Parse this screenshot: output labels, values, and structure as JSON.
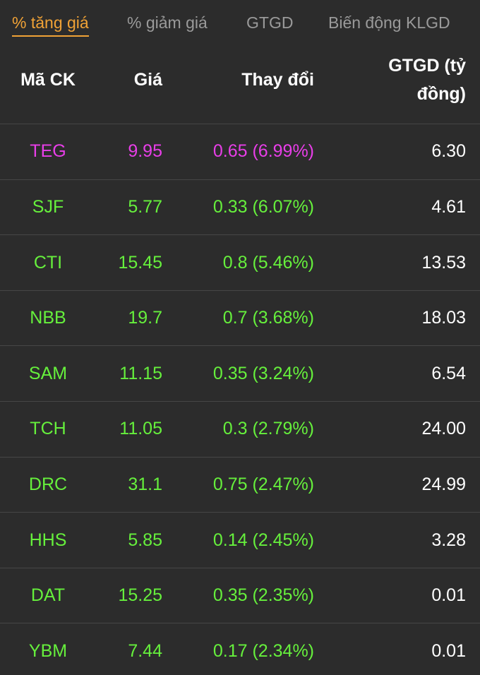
{
  "tabs": {
    "items": [
      "% tăng giá",
      "% giảm giá",
      "GTGD",
      "Biến động KLGD"
    ],
    "active": 0
  },
  "table": {
    "columns": [
      "Mã CK",
      "Giá",
      "Thay đổi",
      "GTGD (tỷ đồng)"
    ],
    "rows": [
      {
        "cells": [
          "TEG",
          "9.95",
          "0.65 (6.99%)",
          "6.30"
        ],
        "color": "#e83ee8"
      },
      {
        "cells": [
          "SJF",
          "5.77",
          "0.33 (6.07%)",
          "4.61"
        ],
        "color": "#66f03c"
      },
      {
        "cells": [
          "CTI",
          "15.45",
          "0.8 (5.46%)",
          "13.53"
        ],
        "color": "#66f03c"
      },
      {
        "cells": [
          "NBB",
          "19.7",
          "0.7 (3.68%)",
          "18.03"
        ],
        "color": "#66f03c"
      },
      {
        "cells": [
          "SAM",
          "11.15",
          "0.35 (3.24%)",
          "6.54"
        ],
        "color": "#66f03c"
      },
      {
        "cells": [
          "TCH",
          "11.05",
          "0.3 (2.79%)",
          "24.00"
        ],
        "color": "#66f03c"
      },
      {
        "cells": [
          "DRC",
          "31.1",
          "0.75 (2.47%)",
          "24.99"
        ],
        "color": "#66f03c"
      },
      {
        "cells": [
          "HHS",
          "5.85",
          "0.14 (2.45%)",
          "3.28"
        ],
        "color": "#66f03c"
      },
      {
        "cells": [
          "DAT",
          "15.25",
          "0.35 (2.35%)",
          "0.01"
        ],
        "color": "#66f03c"
      },
      {
        "cells": [
          "YBM",
          "7.44",
          "0.17 (2.34%)",
          "0.01"
        ],
        "color": "#66f03c"
      }
    ]
  }
}
